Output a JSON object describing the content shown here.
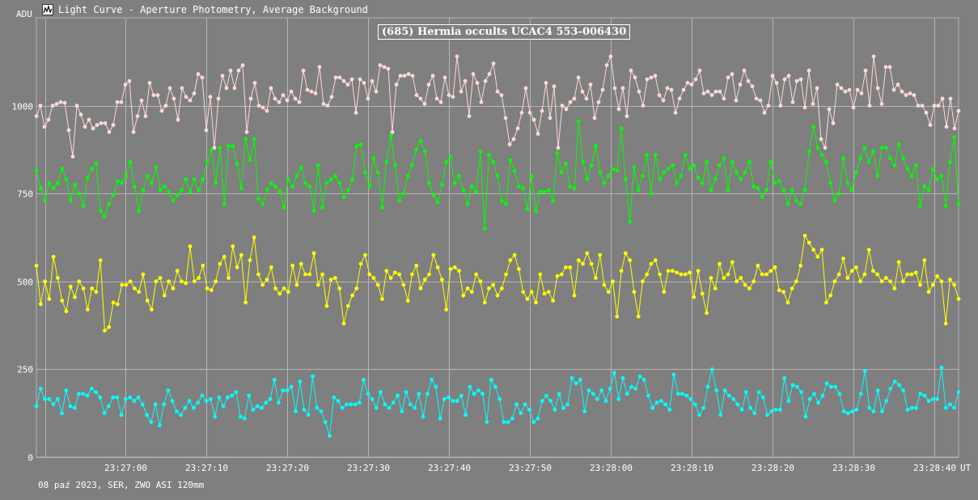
{
  "window": {
    "title": "Light Curve - Aperture Photometry, Average Background",
    "icon": "light-curve-app-icon"
  },
  "footer_text": "08 paź 2023, SER, ZWO ASI 120mm",
  "colors": {
    "background": "#7f7f7f",
    "grid": "#b5b5b5",
    "series_pink": "#ffd8d8",
    "series_green": "#00ff00",
    "series_yellow": "#ffff00",
    "series_cyan": "#00ffff"
  },
  "chart_data": {
    "type": "line",
    "title": "(685) Hermia occults UCAC4 553-006430",
    "ylabel": "ADU",
    "xlabel": "UT",
    "ylim": [
      0,
      1250
    ],
    "xlim_seconds_from_start": [
      0,
      114
    ],
    "yticks": [
      "0",
      "250",
      "500",
      "750",
      "1000"
    ],
    "xtick_labels": [
      "23:27:00",
      "23:27:10",
      "23:27:20",
      "23:27:30",
      "23:27:40",
      "23:27:50",
      "23:28:00",
      "23:28:10",
      "23:28:20",
      "23:28:30",
      "23:28:40"
    ],
    "grid": true,
    "series": [
      {
        "color": "#ffd8d8",
        "values": [
          970,
          1000,
          940,
          960,
          1000,
          1005,
          1010,
          1008,
          930,
          855,
          1000,
          975,
          940,
          960,
          935,
          945,
          950,
          950,
          925,
          945,
          1010,
          1010,
          1060,
          1070,
          925,
          970,
          1015,
          970,
          1065,
          1030,
          1030,
          985,
          1000,
          1050,
          1020,
          960,
          1050,
          1025,
          1015,
          1035,
          1090,
          1080,
          930,
          1025,
          880,
          1020,
          1085,
          1050,
          1100,
          1050,
          1100,
          1115,
          925,
          1020,
          1065,
          1000,
          995,
          985,
          1050,
          1020,
          1010,
          1030,
          1015,
          1040,
          1020,
          1010,
          1100,
          1045,
          1040,
          1035,
          1110,
          1005,
          1000,
          1025,
          1080,
          1080,
          1070,
          1060,
          1075,
          980,
          1075,
          1065,
          1020,
          1070,
          1040,
          1115,
          1110,
          1105,
          925,
          1060,
          1085,
          1085,
          1090,
          1085,
          1030,
          1020,
          1005,
          1060,
          1085,
          1020,
          1010,
          1080,
          1030,
          1025,
          1140,
          1040,
          1070,
          970,
          1090,
          1065,
          1010,
          1070,
          1090,
          1120,
          1040,
          1030,
          965,
          890,
          905,
          935,
          980,
          1050,
          980,
          960,
          920,
          985,
          1065,
          965,
          1055,
          880,
          1000,
          990,
          1010,
          1020,
          1080,
          1040,
          1020,
          1060,
          965,
          1010,
          1045,
          1115,
          1140,
          1050,
          990,
          1050,
          970,
          1100,
          1080,
          1040,
          1000,
          1075,
          1080,
          1085,
          1030,
          1015,
          1050,
          1045,
          980,
          1020,
          1045,
          1065,
          1060,
          1075,
          1100,
          1035,
          1040,
          1030,
          1040,
          1040,
          1020,
          1080,
          1090,
          1015,
          1060,
          1100,
          1070,
          1055,
          1020,
          1015,
          980,
          1000,
          1085,
          1065,
          1000,
          1075,
          1085,
          1010,
          1070,
          1075,
          995,
          1100,
          1005,
          1050,
          905,
          880,
          990,
          950,
          1060,
          1050,
          1040,
          1045,
          995,
          1045,
          1035,
          1100,
          1000,
          1140,
          1050,
          1005,
          1110,
          1110,
          1045,
          1060,
          1040,
          1030,
          1035,
          1030,
          1000,
          1000,
          980,
          945,
          1000,
          1000,
          1020,
          940,
          1020,
          935,
          985
        ]
      },
      {
        "color": "#00ff00",
        "values": [
          815,
          765,
          730,
          780,
          765,
          780,
          820,
          790,
          730,
          775,
          750,
          715,
          795,
          820,
          835,
          700,
          685,
          720,
          745,
          785,
          780,
          800,
          840,
          770,
          700,
          760,
          800,
          780,
          825,
          760,
          770,
          755,
          730,
          745,
          760,
          790,
          755,
          790,
          760,
          790,
          840,
          875,
          780,
          880,
          720,
          885,
          885,
          835,
          765,
          905,
          845,
          905,
          735,
          720,
          760,
          780,
          770,
          755,
          710,
          790,
          770,
          800,
          825,
          780,
          770,
          700,
          830,
          710,
          780,
          790,
          800,
          780,
          740,
          760,
          790,
          885,
          890,
          810,
          770,
          850,
          810,
          710,
          840,
          915,
          830,
          730,
          750,
          800,
          830,
          875,
          900,
          870,
          780,
          745,
          725,
          775,
          840,
          855,
          780,
          800,
          760,
          720,
          770,
          755,
          870,
          650,
          860,
          840,
          800,
          730,
          720,
          845,
          815,
          770,
          765,
          705,
          800,
          700,
          755,
          755,
          760,
          730,
          865,
          810,
          835,
          770,
          765,
          955,
          840,
          790,
          830,
          885,
          810,
          780,
          800,
          820,
          815,
          935,
          790,
          670,
          825,
          760,
          800,
          860,
          750,
          860,
          790,
          810,
          820,
          830,
          780,
          800,
          860,
          820,
          830,
          795,
          780,
          840,
          760,
          790,
          830,
          850,
          760,
          840,
          810,
          790,
          810,
          840,
          770,
          765,
          740,
          760,
          840,
          780,
          785,
          760,
          720,
          760,
          730,
          720,
          760,
          870,
          940,
          880,
          860,
          840,
          780,
          730,
          750,
          850,
          780,
          760,
          810,
          850,
          880,
          840,
          870,
          800,
          880,
          880,
          850,
          830,
          890,
          850,
          820,
          800,
          830,
          715,
          770,
          760,
          820,
          790,
          800,
          715,
          840,
          910,
          720
        ]
      },
      {
        "color": "#ffff00",
        "values": [
          545,
          435,
          500,
          450,
          570,
          510,
          445,
          415,
          485,
          455,
          500,
          480,
          420,
          480,
          470,
          560,
          360,
          370,
          440,
          435,
          490,
          490,
          500,
          480,
          470,
          520,
          445,
          420,
          500,
          510,
          460,
          500,
          480,
          530,
          500,
          495,
          600,
          500,
          510,
          545,
          480,
          475,
          500,
          550,
          570,
          510,
          600,
          540,
          575,
          440,
          560,
          625,
          520,
          490,
          505,
          540,
          480,
          465,
          480,
          470,
          545,
          490,
          550,
          520,
          520,
          580,
          490,
          520,
          430,
          505,
          510,
          480,
          380,
          430,
          460,
          480,
          550,
          575,
          520,
          510,
          490,
          450,
          530,
          510,
          525,
          520,
          490,
          445,
          520,
          545,
          480,
          505,
          520,
          575,
          540,
          505,
          420,
          535,
          540,
          530,
          460,
          480,
          470,
          520,
          500,
          440,
          480,
          490,
          460,
          480,
          520,
          560,
          575,
          535,
          470,
          450,
          470,
          440,
          520,
          465,
          470,
          445,
          515,
          520,
          540,
          540,
          460,
          560,
          550,
          580,
          550,
          510,
          575,
          490,
          470,
          500,
          400,
          530,
          580,
          560,
          470,
          400,
          500,
          520,
          550,
          560,
          520,
          470,
          530,
          530,
          525,
          520,
          520,
          525,
          455,
          530,
          465,
          410,
          510,
          480,
          550,
          510,
          520,
          555,
          500,
          510,
          490,
          480,
          500,
          545,
          520,
          520,
          530,
          540,
          475,
          470,
          440,
          480,
          500,
          545,
          630,
          610,
          590,
          570,
          590,
          440,
          460,
          500,
          520,
          565,
          510,
          530,
          540,
          500,
          520,
          590,
          530,
          520,
          500,
          510,
          500,
          480,
          555,
          500,
          520,
          520,
          525,
          490,
          560,
          470,
          490,
          515,
          500,
          380,
          505,
          490,
          450
        ]
      },
      {
        "color": "#00ffff",
        "values": [
          145,
          195,
          165,
          165,
          150,
          165,
          125,
          190,
          145,
          140,
          180,
          180,
          175,
          195,
          185,
          170,
          125,
          145,
          170,
          170,
          120,
          165,
          170,
          160,
          170,
          150,
          120,
          100,
          150,
          90,
          150,
          190,
          160,
          130,
          120,
          140,
          160,
          140,
          155,
          175,
          160,
          165,
          115,
          170,
          145,
          170,
          175,
          185,
          115,
          110,
          175,
          135,
          145,
          140,
          155,
          165,
          220,
          155,
          190,
          190,
          200,
          130,
          215,
          135,
          120,
          230,
          140,
          130,
          100,
          60,
          170,
          160,
          140,
          150,
          150,
          150,
          155,
          220,
          180,
          165,
          140,
          185,
          150,
          140,
          155,
          175,
          130,
          185,
          150,
          140,
          180,
          115,
          180,
          220,
          200,
          110,
          165,
          170,
          160,
          160,
          175,
          120,
          200,
          180,
          190,
          180,
          100,
          220,
          200,
          165,
          100,
          100,
          110,
          150,
          125,
          150,
          135,
          100,
          110,
          160,
          175,
          160,
          135,
          180,
          140,
          150,
          225,
          210,
          220,
          130,
          190,
          180,
          165,
          190,
          160,
          195,
          240,
          165,
          225,
          180,
          200,
          195,
          230,
          220,
          175,
          140,
          155,
          160,
          150,
          135,
          235,
          180,
          180,
          175,
          165,
          150,
          120,
          140,
          200,
          250,
          190,
          120,
          190,
          175,
          165,
          150,
          135,
          185,
          140,
          125,
          185,
          170,
          120,
          130,
          135,
          135,
          225,
          160,
          205,
          200,
          185,
          115,
          165,
          180,
          155,
          175,
          210,
          200,
          200,
          180,
          130,
          125,
          130,
          135,
          180,
          245,
          140,
          130,
          190,
          130,
          160,
          195,
          215,
          205,
          190,
          135,
          140,
          140,
          180,
          175,
          160,
          165,
          165,
          255,
          140,
          150,
          140,
          185
        ]
      }
    ]
  }
}
